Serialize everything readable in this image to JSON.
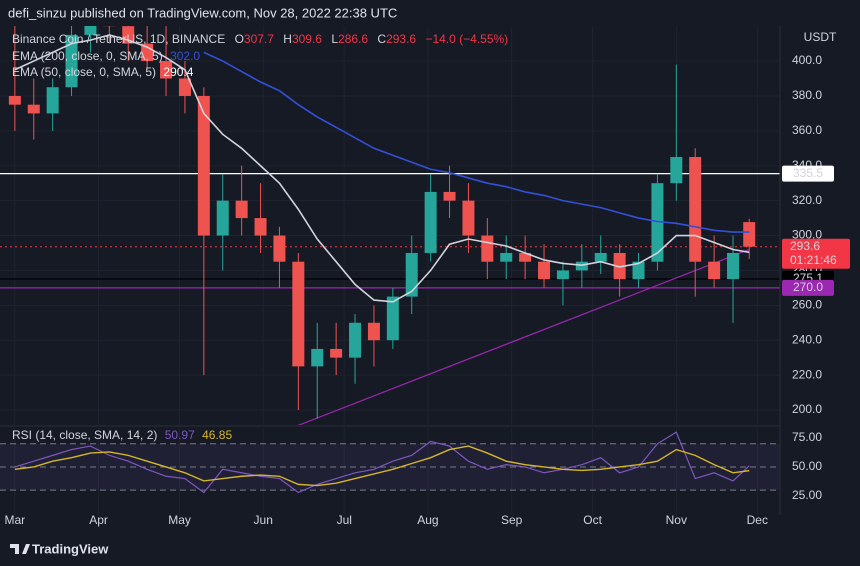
{
  "chart_data": {
    "type": "candlestick",
    "publisher_line": "defi_sinzu published on TradingView.com, Nov 28, 2022 22:38 UTC",
    "symbol": "Binance Coin / TetherUS, 1D, BINANCE",
    "ohlc_letters": [
      "O",
      "H",
      "L",
      "C"
    ],
    "change_label": "−14.0 (−4.55%)",
    "currency": "USDT",
    "countdown": "01:21:46",
    "footer": "TradingView",
    "grid": true,
    "up_color": "#26a69a",
    "down_color": "#ef5350",
    "x": [
      0,
      7,
      14,
      21,
      28,
      35,
      42,
      49,
      56,
      63,
      70,
      77,
      84,
      91,
      98,
      105,
      112,
      119,
      126,
      133,
      140,
      147,
      154,
      161,
      168,
      175,
      182,
      189,
      196,
      203,
      210,
      217,
      224,
      231,
      238,
      245,
      252,
      259,
      266,
      272
    ],
    "open": [
      380,
      375,
      370,
      385,
      415,
      425,
      420,
      410,
      400,
      390,
      380,
      300,
      320,
      310,
      300,
      285,
      225,
      235,
      230,
      250,
      240,
      265,
      290,
      325,
      320,
      300,
      285,
      290,
      285,
      275,
      280,
      285,
      290,
      275,
      285,
      330,
      345,
      285,
      275,
      307.7
    ],
    "high": [
      420,
      390,
      390,
      425,
      440,
      435,
      430,
      425,
      420,
      400,
      385,
      335,
      340,
      330,
      305,
      290,
      250,
      250,
      255,
      260,
      270,
      300,
      335,
      340,
      330,
      310,
      300,
      300,
      295,
      285,
      295,
      300,
      295,
      290,
      335,
      398,
      350,
      300,
      300,
      309.6
    ],
    "low": [
      360,
      355,
      360,
      380,
      405,
      410,
      400,
      395,
      380,
      370,
      220,
      280,
      300,
      290,
      270,
      200,
      195,
      220,
      215,
      225,
      235,
      255,
      285,
      310,
      290,
      275,
      275,
      275,
      270,
      260,
      270,
      278,
      265,
      270,
      280,
      320,
      265,
      270,
      250,
      286.6
    ],
    "close": [
      375,
      370,
      385,
      415,
      425,
      420,
      410,
      400,
      390,
      380,
      300,
      320,
      310,
      300,
      285,
      225,
      235,
      230,
      250,
      240,
      265,
      290,
      325,
      320,
      300,
      285,
      290,
      285,
      275,
      280,
      285,
      290,
      275,
      285,
      330,
      345,
      285,
      275,
      290,
      293.6
    ],
    "xlim": [
      -5.5,
      283.4
    ],
    "xticks": [
      {
        "value": 0,
        "label": "Mar"
      },
      {
        "value": 31,
        "label": "Apr"
      },
      {
        "value": 61,
        "label": "May"
      },
      {
        "value": 92,
        "label": "Jun"
      },
      {
        "value": 122,
        "label": "Jul"
      },
      {
        "value": 153,
        "label": "Aug"
      },
      {
        "value": 184,
        "label": "Sep"
      },
      {
        "value": 214,
        "label": "Oct"
      },
      {
        "value": 245,
        "label": "Nov"
      },
      {
        "value": 275,
        "label": "Dec"
      }
    ],
    "ylim": [
      191.4,
      435
    ],
    "yticks": [
      {
        "value": 200,
        "label": "200.0"
      },
      {
        "value": 220,
        "label": "220.0"
      },
      {
        "value": 240,
        "label": "240.0"
      },
      {
        "value": 260,
        "label": "260.0"
      },
      {
        "value": 280,
        "label": "280.0"
      },
      {
        "value": 300,
        "label": "300.0"
      },
      {
        "value": 320,
        "label": "320.0"
      },
      {
        "value": 340,
        "label": "340.0"
      },
      {
        "value": 360,
        "label": "360.0"
      },
      {
        "value": 380,
        "label": "380.0"
      },
      {
        "value": 400,
        "label": "400.0"
      }
    ],
    "last_price_color": "#f23645",
    "overlays": [
      {
        "name": "EMA (200, close, 0, SMA, 5)",
        "color": "#3350d8",
        "values": [
          null,
          null,
          null,
          null,
          null,
          null,
          null,
          null,
          null,
          null,
          405,
          400,
          394,
          388,
          383,
          375,
          368,
          362,
          356,
          350,
          346,
          342,
          338,
          336,
          333,
          330,
          328,
          325,
          323,
          320,
          318,
          316,
          313,
          310,
          308,
          307,
          305,
          303,
          302,
          302.0
        ],
        "value_labels": [
          null,
          null,
          null,
          null,
          null,
          null,
          null,
          null,
          null,
          null,
          null,
          null,
          null,
          null,
          null,
          null,
          null,
          null,
          null,
          null,
          null,
          null,
          null,
          null,
          null,
          null,
          null,
          null,
          null,
          null,
          null,
          null,
          null,
          null,
          null,
          null,
          null,
          null,
          null,
          "302.0"
        ]
      },
      {
        "name": "EMA (50, close, 0, SMA, 5)",
        "color": "#d1d4dc",
        "values": [
          395,
          400,
          405,
          410,
          412,
          415,
          412,
          408,
          402,
          395,
          370,
          358,
          350,
          340,
          330,
          315,
          298,
          285,
          272,
          263,
          262,
          268,
          280,
          295,
          298,
          296,
          294,
          290,
          286,
          284,
          283,
          285,
          282,
          284,
          290,
          300,
          300,
          296,
          292,
          290.4
        ]
      }
    ],
    "levels": [
      {
        "value": 335.5,
        "color": "#ffffff",
        "text_color": "#131722"
      },
      {
        "value": 275.1,
        "color": "#000000",
        "text_color": "#ffffff"
      },
      {
        "value": 270.0,
        "label": "270.0",
        "color": "#9c27b0",
        "text_color": "#ffffff"
      }
    ],
    "trendline": {
      "color": "#9c27b0",
      "x": [
        103,
        272
      ],
      "values": [
        190,
        292
      ]
    },
    "rsi": {
      "name": "RSI (14, close, SMA, 14, 2)",
      "color": "#7e57c2",
      "sma_color": "#d4b62a",
      "ylim": [
        8.6,
        83.6
      ],
      "yticks": [
        {
          "value": 25,
          "label": "25.00"
        },
        {
          "value": 50,
          "label": "50.00"
        },
        {
          "value": 75,
          "label": "75.00"
        }
      ],
      "bands": [
        30,
        50,
        70
      ],
      "values": [
        50,
        55,
        60,
        65,
        68,
        60,
        55,
        48,
        42,
        40,
        28,
        48,
        45,
        42,
        40,
        28,
        35,
        40,
        45,
        48,
        55,
        60,
        72,
        68,
        55,
        48,
        52,
        50,
        45,
        48,
        52,
        58,
        45,
        50,
        70,
        80,
        40,
        45,
        38,
        50.97
      ],
      "sma_values": [
        48,
        50,
        55,
        58,
        62,
        63,
        60,
        55,
        50,
        45,
        38,
        40,
        42,
        43,
        42,
        35,
        34,
        36,
        40,
        44,
        48,
        53,
        58,
        65,
        68,
        62,
        55,
        52,
        50,
        48,
        47,
        48,
        50,
        52,
        55,
        65,
        60,
        52,
        45,
        46.85
      ]
    }
  }
}
